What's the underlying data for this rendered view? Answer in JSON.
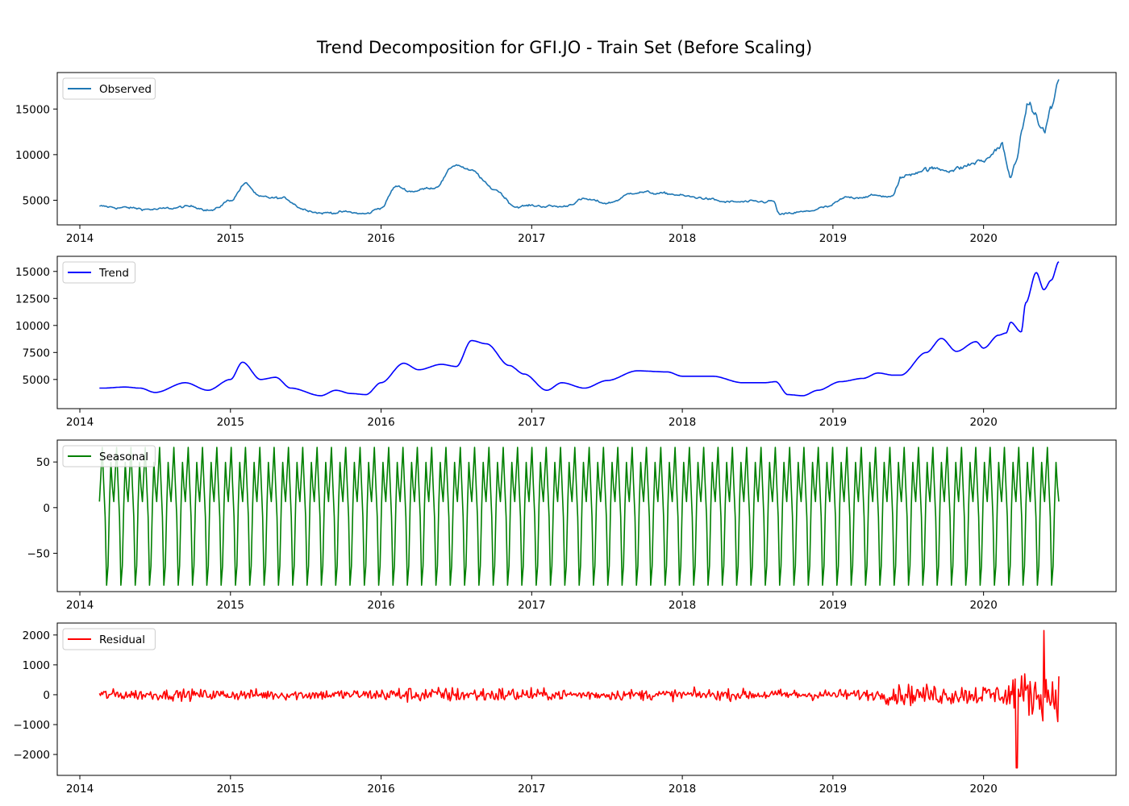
{
  "title": "Trend Decomposition for GFI.JO - Train Set (Before Scaling)",
  "chart_data": [
    {
      "type": "line",
      "series": [
        {
          "name": "Observed",
          "color": "#1f77b4"
        }
      ],
      "x_range": [
        "2014-02-15",
        "2020-07-01"
      ],
      "ylim": [
        2300,
        19000
      ],
      "x_ticks": [
        "2014",
        "2015",
        "2016",
        "2017",
        "2018",
        "2019",
        "2020"
      ],
      "y_ticks": [
        5000,
        10000,
        15000
      ],
      "y_tick_labels": [
        "5000",
        "10000",
        "15000"
      ],
      "legend": "upper left",
      "style": "noisy",
      "x": [
        2014.14,
        2014.25,
        2014.5,
        2014.75,
        2014.88,
        2015.0,
        2015.1,
        2015.2,
        2015.35,
        2015.5,
        2015.6,
        2015.75,
        2015.9,
        2016.0,
        2016.1,
        2016.2,
        2016.35,
        2016.5,
        2016.6,
        2016.75,
        2016.9,
        2017.0,
        2017.2,
        2017.35,
        2017.5,
        2017.7,
        2017.9,
        2018.1,
        2018.3,
        2018.5,
        2018.6,
        2018.65,
        2018.8,
        2018.95,
        2019.1,
        2019.3,
        2019.4,
        2019.45,
        2019.6,
        2019.8,
        2020.0,
        2020.12,
        2020.18,
        2020.22,
        2020.3,
        2020.4,
        2020.45,
        2020.5
      ],
      "values": [
        4300,
        4200,
        4000,
        4300,
        3900,
        5000,
        6800,
        5300,
        5200,
        4000,
        3600,
        3700,
        3500,
        4200,
        6500,
        6000,
        6400,
        8900,
        8200,
        6200,
        4300,
        4400,
        4300,
        5100,
        4700,
        5900,
        5700,
        5300,
        4800,
        4800,
        4900,
        3400,
        3700,
        4200,
        5300,
        5500,
        5400,
        7500,
        8400,
        8400,
        9300,
        11000,
        7200,
        10000,
        15500,
        12600,
        15000,
        18300
      ]
    },
    {
      "type": "line",
      "series": [
        {
          "name": "Trend",
          "color": "#0000ff"
        }
      ],
      "x_range": [
        "2014-02-15",
        "2020-07-01"
      ],
      "ylim": [
        2300,
        16400
      ],
      "x_ticks": [
        "2014",
        "2015",
        "2016",
        "2017",
        "2018",
        "2019",
        "2020"
      ],
      "y_ticks": [
        5000,
        7500,
        10000,
        12500,
        15000
      ],
      "y_tick_labels": [
        "5000",
        "7500",
        "10000",
        "12500",
        "15000"
      ],
      "legend": "upper left",
      "style": "smooth",
      "x": [
        2014.15,
        2014.3,
        2014.4,
        2014.5,
        2014.7,
        2014.85,
        2015.0,
        2015.08,
        2015.2,
        2015.3,
        2015.4,
        2015.6,
        2015.7,
        2015.8,
        2015.9,
        2016.0,
        2016.15,
        2016.25,
        2016.4,
        2016.5,
        2016.6,
        2016.7,
        2016.85,
        2016.95,
        2017.1,
        2017.2,
        2017.35,
        2017.5,
        2017.7,
        2017.9,
        2018.0,
        2018.2,
        2018.4,
        2018.55,
        2018.62,
        2018.7,
        2018.8,
        2018.9,
        2019.05,
        2019.2,
        2019.3,
        2019.4,
        2019.45,
        2019.62,
        2019.72,
        2019.82,
        2019.95,
        2020.0,
        2020.1,
        2020.15,
        2020.18,
        2020.25,
        2020.28,
        2020.35,
        2020.4,
        2020.45,
        2020.5
      ],
      "values": [
        4200,
        4300,
        4200,
        3800,
        4700,
        4000,
        5000,
        6600,
        5000,
        5200,
        4200,
        3500,
        4000,
        3700,
        3600,
        4700,
        6500,
        5900,
        6400,
        6200,
        8600,
        8300,
        6300,
        5500,
        4000,
        4700,
        4200,
        4900,
        5800,
        5700,
        5300,
        5300,
        4700,
        4700,
        4800,
        3600,
        3500,
        4000,
        4800,
        5100,
        5600,
        5400,
        5400,
        7500,
        8800,
        7600,
        8500,
        7900,
        9100,
        9300,
        10300,
        9400,
        12100,
        14900,
        13300,
        14200,
        15900
      ]
    },
    {
      "type": "line",
      "series": [
        {
          "name": "Seasonal",
          "color": "#008000"
        }
      ],
      "x_range": [
        "2014-02-15",
        "2020-07-01"
      ],
      "ylim": [
        -92,
        74
      ],
      "x_ticks": [
        "2014",
        "2015",
        "2016",
        "2017",
        "2018",
        "2019",
        "2020"
      ],
      "y_ticks": [
        50,
        0,
        -50
      ],
      "y_tick_labels": [
        "50",
        "0",
        "−50"
      ],
      "legend": "upper left",
      "style": "periodic",
      "cycles": 67,
      "range": [
        -85,
        66
      ]
    },
    {
      "type": "line",
      "series": [
        {
          "name": "Residual",
          "color": "#ff0000"
        }
      ],
      "x_range": [
        "2014-02-15",
        "2020-07-01"
      ],
      "ylim": [
        -2700,
        2400
      ],
      "x_ticks": [
        "2014",
        "2015",
        "2016",
        "2017",
        "2018",
        "2019",
        "2020"
      ],
      "y_ticks": [
        2000,
        1000,
        0,
        -1000,
        -2000
      ],
      "y_tick_labels": [
        "2000",
        "1000",
        "0",
        "−1000",
        "−2000"
      ],
      "legend": "upper left",
      "style": "residual",
      "extremes": {
        "max": 2150,
        "min": -2450
      }
    }
  ]
}
